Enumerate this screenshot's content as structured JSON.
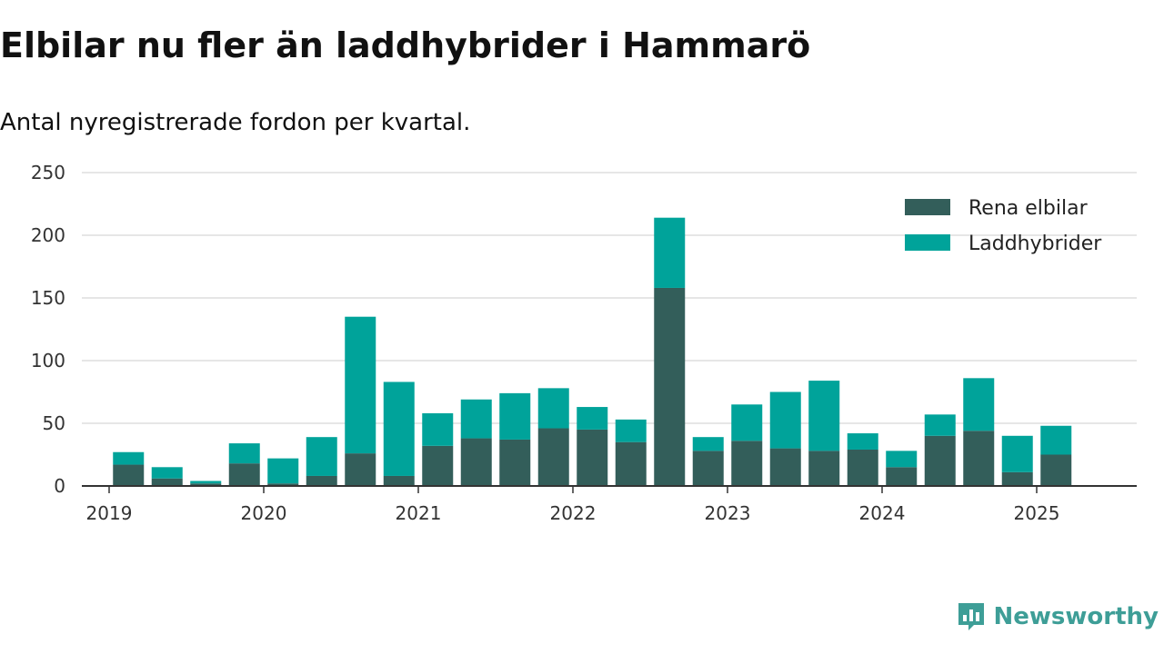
{
  "colors": {
    "electric": "#335e5a",
    "hybrid": "#00a39a",
    "grid": "#dddddd",
    "axis": "#333333",
    "brand": "#3e9e97"
  },
  "brand": {
    "name": "Newsworthy",
    "icon": "chart-bubble-icon"
  },
  "chart_data": {
    "type": "bar",
    "stacked": true,
    "title": "Elbilar nu fler än laddhybrider i Hammarö",
    "subtitle": "Antal nyregistrerade fordon per kvartal.",
    "xlabel": "",
    "ylabel": "",
    "ylim": [
      0,
      250
    ],
    "yticks": [
      0,
      50,
      100,
      150,
      200,
      250
    ],
    "grid": true,
    "legend_position": "top-right",
    "x_tick_labels": [
      "2019",
      "2020",
      "2021",
      "2022",
      "2023",
      "2024",
      "2025"
    ],
    "categories": [
      "2019 Q1",
      "2019 Q2",
      "2019 Q3",
      "2019 Q4",
      "2020 Q1",
      "2020 Q2",
      "2020 Q3",
      "2020 Q4",
      "2021 Q1",
      "2021 Q2",
      "2021 Q3",
      "2021 Q4",
      "2022 Q1",
      "2022 Q2",
      "2022 Q3",
      "2022 Q4",
      "2023 Q1",
      "2023 Q2",
      "2023 Q3",
      "2023 Q4",
      "2024 Q1",
      "2024 Q2",
      "2024 Q3",
      "2024 Q4",
      "2025 Q1",
      "2025 Q2"
    ],
    "series": [
      {
        "name": "Rena elbilar",
        "color": "#335e5a",
        "values": [
          17,
          6,
          2,
          18,
          2,
          8,
          26,
          8,
          32,
          38,
          37,
          46,
          45,
          35,
          158,
          28,
          36,
          30,
          28,
          29,
          15,
          40,
          44,
          11,
          25,
          0
        ]
      },
      {
        "name": "Laddhybrider",
        "color": "#00a39a",
        "values": [
          10,
          9,
          2,
          16,
          20,
          31,
          109,
          75,
          26,
          31,
          37,
          32,
          18,
          18,
          56,
          11,
          29,
          45,
          56,
          13,
          13,
          17,
          42,
          29,
          23,
          0
        ]
      }
    ]
  }
}
